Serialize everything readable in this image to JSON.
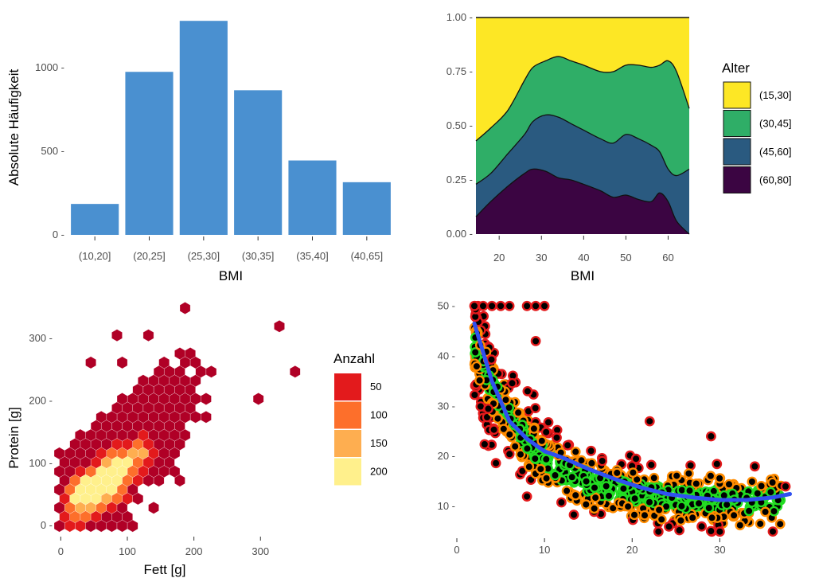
{
  "chart_data": [
    {
      "type": "bar",
      "categories": [
        "(10,20]",
        "(20,25]",
        "(25,30]",
        "(30,35]",
        "(35,40]",
        "(40,65]"
      ],
      "values": [
        185,
        975,
        1280,
        865,
        445,
        315
      ],
      "xlabel": "BMI",
      "ylabel": "Absolute Häufigkeit",
      "ylim": [
        0,
        1300
      ],
      "yticks": [
        0,
        500,
        1000
      ],
      "ytick_labels": [
        "0 -",
        "500 -",
        "1000 -"
      ],
      "color": "#4a90d0",
      "grid": false
    },
    {
      "type": "area",
      "stacked": "fill",
      "xlabel": "BMI",
      "ylabel": "",
      "xlim": [
        14.5,
        65
      ],
      "ylim": [
        0,
        1
      ],
      "xticks": [
        20,
        30,
        40,
        50,
        60
      ],
      "yticks": [
        "0.00 -",
        "0.25 -",
        "0.50 -",
        "0.75 -",
        "1.00 -"
      ],
      "legend_title": "Alter",
      "legend_position": "right",
      "x": [
        14.5,
        18,
        22,
        26,
        28,
        31,
        34,
        37,
        40,
        44,
        47,
        50,
        53,
        56,
        58,
        60,
        62,
        65
      ],
      "series": [
        {
          "name": "(60,80]",
          "color": "#3b0542",
          "values": [
            0.08,
            0.15,
            0.22,
            0.28,
            0.3,
            0.29,
            0.26,
            0.25,
            0.23,
            0.2,
            0.17,
            0.18,
            0.16,
            0.15,
            0.19,
            0.15,
            0.06,
            0.0
          ]
        },
        {
          "name": "(45,60]",
          "color": "#2a5a80",
          "values": [
            0.15,
            0.13,
            0.15,
            0.18,
            0.22,
            0.26,
            0.28,
            0.26,
            0.25,
            0.24,
            0.25,
            0.28,
            0.28,
            0.26,
            0.19,
            0.15,
            0.21,
            0.3
          ]
        },
        {
          "name": "(30,45]",
          "color": "#2fae67",
          "values": [
            0.2,
            0.21,
            0.2,
            0.25,
            0.25,
            0.25,
            0.28,
            0.29,
            0.3,
            0.31,
            0.33,
            0.32,
            0.34,
            0.36,
            0.4,
            0.5,
            0.48,
            0.28
          ]
        },
        {
          "name": "(15,30]",
          "color": "#fde725",
          "values": [
            0.57,
            0.51,
            0.43,
            0.29,
            0.23,
            0.2,
            0.18,
            0.2,
            0.22,
            0.25,
            0.25,
            0.22,
            0.22,
            0.23,
            0.22,
            0.2,
            0.25,
            0.42
          ]
        }
      ]
    },
    {
      "type": "hexbin",
      "xlabel": "Fett [g]",
      "ylabel": "Protein [g]",
      "xlim": [
        -10,
        375
      ],
      "ylim": [
        -15,
        355
      ],
      "xticks": [
        0,
        100,
        200,
        300
      ],
      "yticks": [
        "0 -",
        "100 -",
        "200 -",
        "300 -"
      ],
      "legend_title": "Anzahl",
      "legend_position": "right",
      "legend_entries": [
        "50",
        "100",
        "150",
        "200"
      ],
      "legend_colors": [
        "#e31a1c",
        "#fd6f2b",
        "#feae50",
        "#fff08c"
      ],
      "low_color": "#b00026",
      "hotspots": [
        [
          55,
          60,
          210
        ],
        [
          70,
          75,
          180
        ],
        [
          85,
          90,
          160
        ],
        [
          40,
          45,
          150
        ],
        [
          100,
          100,
          120
        ],
        [
          75,
          55,
          120
        ],
        [
          120,
          110,
          90
        ]
      ],
      "outliers": [
        [
          185,
          345
        ],
        [
          90,
          300
        ],
        [
          125,
          300
        ],
        [
          330,
          315
        ],
        [
          180,
          275
        ],
        [
          50,
          255
        ],
        [
          100,
          255
        ],
        [
          355,
          240
        ],
        [
          160,
          255
        ],
        [
          300,
          210
        ]
      ]
    },
    {
      "type": "scatter",
      "xlabel": "",
      "ylabel": "",
      "xlim": [
        0,
        38.5
      ],
      "ylim": [
        4,
        51
      ],
      "xticks": [
        0,
        10,
        20,
        30
      ],
      "yticks": [
        "10 -",
        "20 -",
        "30 -",
        "40 -",
        "50 -"
      ],
      "point_fill": "#000000",
      "outline_colors": [
        "#e31a1c",
        "#ff8c00",
        "#22dd22"
      ],
      "trend": {
        "color": "#3050f0",
        "x": [
          2,
          4,
          6,
          8,
          10,
          12,
          15,
          18,
          21,
          24,
          27,
          30,
          33,
          36,
          38
        ],
        "y": [
          46.5,
          35,
          27,
          23.5,
          21,
          19.8,
          17.5,
          15.5,
          13.8,
          12.5,
          11.8,
          11.3,
          11.3,
          11.8,
          12.5
        ]
      }
    }
  ]
}
